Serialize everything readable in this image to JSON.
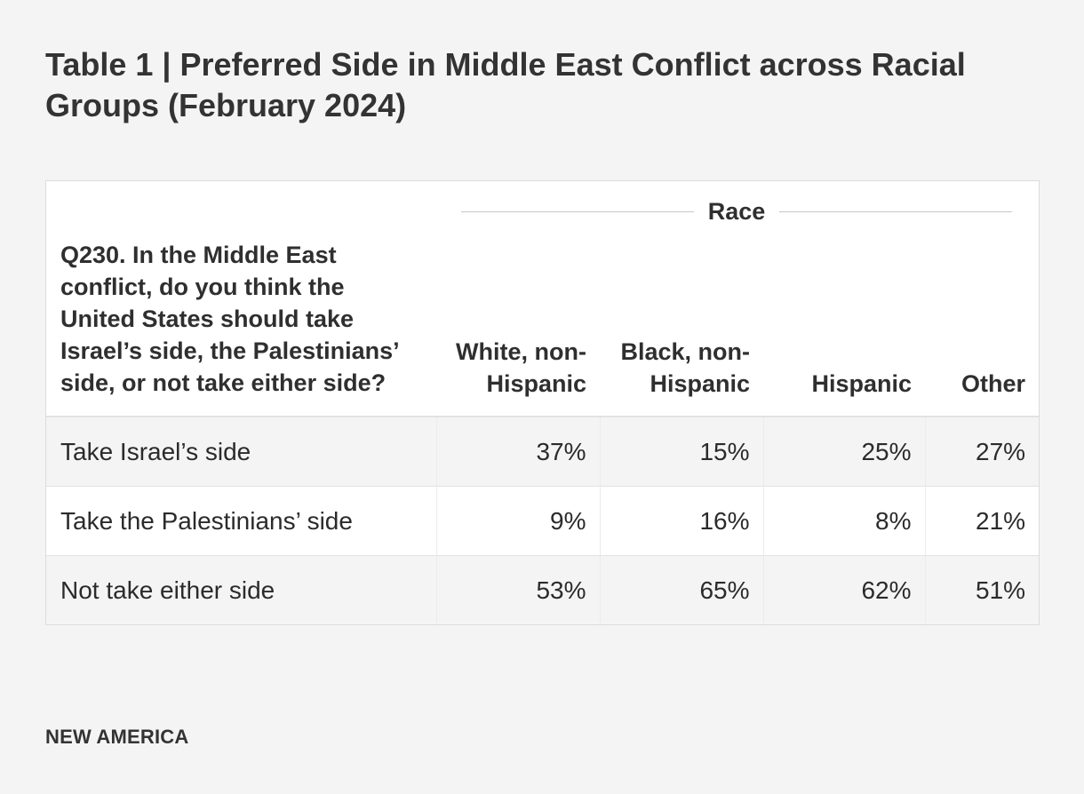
{
  "title": "Table 1 | Preferred Side in Middle East Conflict across Racial Groups (February 2024)",
  "footer": "NEW AMERICA",
  "chart_data": {
    "type": "table",
    "title": "Table 1 | Preferred Side in Middle East Conflict across Racial Groups (February 2024)",
    "group_header": "Race",
    "question": "Q230. In the Middle East conflict, do you think the United States should take Israel’s side, the Palestinians’ side, or not take either side?",
    "columns": [
      "White, non-Hispanic",
      "Black, non-Hispanic",
      "Hispanic",
      "Other"
    ],
    "rows": [
      {
        "label": "Take Israel’s side",
        "values": [
          "37%",
          "15%",
          "25%",
          "27%"
        ]
      },
      {
        "label": "Take the Palestinians’ side",
        "values": [
          "9%",
          "16%",
          "8%",
          "21%"
        ]
      },
      {
        "label": "Not take either side",
        "values": [
          "53%",
          "65%",
          "62%",
          "51%"
        ]
      }
    ]
  }
}
